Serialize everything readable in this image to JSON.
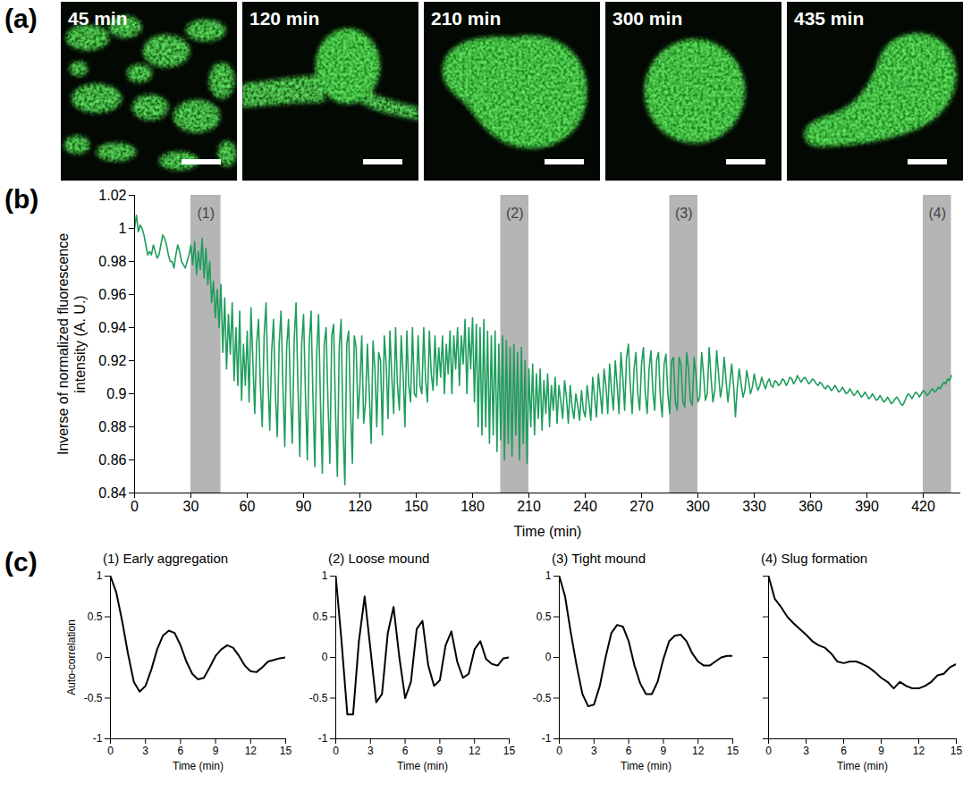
{
  "panel_letters": [
    "(a)",
    "(b)",
    "(c)"
  ],
  "images": [
    {
      "label": "45 min"
    },
    {
      "label": "120 min"
    },
    {
      "label": "210 min"
    },
    {
      "label": "300 min"
    },
    {
      "label": "435 min"
    }
  ],
  "chart_data": [
    {
      "type": "line",
      "xlabel": "Time (min)",
      "ylabel": "Inverse of normalized fluorescence intensity (A. U.)",
      "color": "#1e9e5c",
      "xlim": [
        0,
        440
      ],
      "xticks": [
        0,
        30,
        60,
        90,
        120,
        150,
        180,
        210,
        240,
        270,
        300,
        330,
        360,
        390,
        420
      ],
      "ylim": [
        0.84,
        1.02
      ],
      "yticks": [
        0.84,
        0.86,
        0.88,
        0.9,
        0.92,
        0.94,
        0.96,
        0.98,
        1,
        1.02
      ],
      "highlights": [
        {
          "label": "(1)",
          "start": 30,
          "end": 46
        },
        {
          "label": "(2)",
          "start": 195,
          "end": 210
        },
        {
          "label": "(3)",
          "start": 285,
          "end": 300
        },
        {
          "label": "(4)",
          "start": 420,
          "end": 435
        }
      ],
      "x": [
        0,
        1,
        2,
        3,
        4,
        5,
        6,
        7,
        8,
        9,
        10,
        11,
        12,
        13,
        14,
        15,
        16,
        17,
        18,
        19,
        20,
        21,
        22,
        23,
        24,
        25,
        26,
        27,
        28,
        29,
        30,
        31,
        32,
        33,
        34,
        35,
        36,
        37,
        38,
        39,
        40,
        41,
        42,
        43,
        44,
        45,
        46,
        47,
        48,
        49,
        50,
        51,
        52,
        53,
        54,
        55,
        56,
        57,
        58,
        59,
        60,
        61,
        62,
        63,
        64,
        65,
        66,
        67,
        68,
        69,
        70,
        71,
        72,
        73,
        74,
        75,
        76,
        77,
        78,
        79,
        80,
        81,
        82,
        83,
        84,
        85,
        86,
        87,
        88,
        89,
        90,
        91,
        92,
        93,
        94,
        95,
        96,
        97,
        98,
        99,
        100,
        101,
        102,
        103,
        104,
        105,
        106,
        107,
        108,
        109,
        110,
        111,
        112,
        113,
        114,
        115,
        116,
        117,
        118,
        119,
        120,
        121,
        122,
        123,
        124,
        125,
        126,
        127,
        128,
        129,
        130,
        131,
        132,
        133,
        134,
        135,
        136,
        137,
        138,
        139,
        140,
        141,
        142,
        143,
        144,
        145,
        146,
        147,
        148,
        149,
        150,
        151,
        152,
        153,
        154,
        155,
        156,
        157,
        158,
        159,
        160,
        161,
        162,
        163,
        164,
        165,
        166,
        167,
        168,
        169,
        170,
        171,
        172,
        173,
        174,
        175,
        176,
        177,
        178,
        179,
        180,
        181,
        182,
        183,
        184,
        185,
        186,
        187,
        188,
        189,
        190,
        191,
        192,
        193,
        194,
        195,
        196,
        197,
        198,
        199,
        200,
        201,
        202,
        203,
        204,
        205,
        206,
        207,
        208,
        209,
        210,
        211,
        212,
        213,
        214,
        215,
        216,
        217,
        218,
        219,
        220,
        221,
        222,
        223,
        224,
        225,
        226,
        227,
        228,
        229,
        230,
        231,
        232,
        233,
        234,
        235,
        236,
        237,
        238,
        239,
        240,
        241,
        242,
        243,
        244,
        245,
        246,
        247,
        248,
        249,
        250,
        251,
        252,
        253,
        254,
        255,
        256,
        257,
        258,
        259,
        260,
        261,
        262,
        263,
        264,
        265,
        266,
        267,
        268,
        269,
        270,
        271,
        272,
        273,
        274,
        275,
        276,
        277,
        278,
        279,
        280,
        281,
        282,
        283,
        284,
        285,
        286,
        287,
        288,
        289,
        290,
        291,
        292,
        293,
        294,
        295,
        296,
        297,
        298,
        299,
        300,
        301,
        302,
        303,
        304,
        305,
        306,
        307,
        308,
        309,
        310,
        311,
        312,
        313,
        314,
        315,
        316,
        317,
        318,
        319,
        320,
        321,
        322,
        323,
        324,
        325,
        326,
        327,
        328,
        329,
        330,
        331,
        332,
        333,
        334,
        335,
        336,
        337,
        338,
        339,
        340,
        341,
        342,
        343,
        344,
        345,
        346,
        347,
        348,
        349,
        350,
        351,
        352,
        353,
        354,
        355,
        356,
        357,
        358,
        359,
        360,
        361,
        362,
        363,
        364,
        365,
        366,
        367,
        368,
        369,
        370,
        371,
        372,
        373,
        374,
        375,
        376,
        377,
        378,
        379,
        380,
        381,
        382,
        383,
        384,
        385,
        386,
        387,
        388,
        389,
        390,
        391,
        392,
        393,
        394,
        395,
        396,
        397,
        398,
        399,
        400,
        401,
        402,
        403,
        404,
        405,
        406,
        407,
        408,
        409,
        410,
        411,
        412,
        413,
        414,
        415,
        416,
        417,
        418,
        419,
        420,
        421,
        422,
        423,
        424,
        425,
        426,
        427,
        428,
        429,
        430,
        431,
        432,
        433,
        434,
        435
      ],
      "values": [
        1.0,
        1.008,
        0.998,
        1.002,
        1.0,
        0.996,
        0.99,
        0.984,
        0.986,
        0.984,
        0.99,
        0.986,
        0.982,
        0.984,
        0.99,
        0.996,
        0.994,
        0.99,
        0.984,
        0.98,
        0.98,
        0.976,
        0.984,
        0.99,
        0.986,
        0.98,
        0.978,
        0.976,
        0.98,
        0.984,
        0.99,
        0.978,
        0.992,
        0.972,
        0.986,
        0.975,
        0.994,
        0.97,
        0.988,
        0.966,
        0.98,
        0.955,
        0.968,
        0.946,
        0.963,
        0.94,
        0.966,
        0.925,
        0.958,
        0.915,
        0.948,
        0.924,
        0.955,
        0.908,
        0.94,
        0.905,
        0.95,
        0.896,
        0.93,
        0.905,
        0.938,
        0.895,
        0.952,
        0.92,
        0.888,
        0.93,
        0.945,
        0.905,
        0.88,
        0.935,
        0.955,
        0.91,
        0.878,
        0.925,
        0.945,
        0.9,
        0.874,
        0.93,
        0.95,
        0.905,
        0.868,
        0.928,
        0.945,
        0.9,
        0.87,
        0.932,
        0.955,
        0.905,
        0.862,
        0.93,
        0.948,
        0.9,
        0.86,
        0.93,
        0.95,
        0.898,
        0.856,
        0.925,
        0.948,
        0.895,
        0.852,
        0.93,
        0.94,
        0.895,
        0.858,
        0.935,
        0.942,
        0.89,
        0.85,
        0.928,
        0.945,
        0.88,
        0.845,
        0.93,
        0.938,
        0.89,
        0.858,
        0.935,
        0.928,
        0.885,
        0.905,
        0.935,
        0.882,
        0.895,
        0.93,
        0.9,
        0.87,
        0.932,
        0.915,
        0.88,
        0.925,
        0.92,
        0.875,
        0.935,
        0.918,
        0.885,
        0.938,
        0.91,
        0.888,
        0.94,
        0.905,
        0.89,
        0.935,
        0.912,
        0.88,
        0.938,
        0.905,
        0.895,
        0.94,
        0.9,
        0.898,
        0.935,
        0.905,
        0.9,
        0.94,
        0.908,
        0.895,
        0.938,
        0.912,
        0.902,
        0.935,
        0.905,
        0.928,
        0.91,
        0.935,
        0.9,
        0.93,
        0.912,
        0.938,
        0.9,
        0.935,
        0.915,
        0.94,
        0.905,
        0.935,
        0.918,
        0.945,
        0.9,
        0.94,
        0.915,
        0.946,
        0.895,
        0.942,
        0.88,
        0.94,
        0.875,
        0.945,
        0.88,
        0.938,
        0.87,
        0.935,
        0.875,
        0.938,
        0.865,
        0.93,
        0.872,
        0.935,
        0.86,
        0.932,
        0.87,
        0.928,
        0.862,
        0.93,
        0.875,
        0.925,
        0.86,
        0.928,
        0.87,
        0.92,
        0.858,
        0.915,
        0.88,
        0.918,
        0.875,
        0.912,
        0.885,
        0.915,
        0.878,
        0.908,
        0.888,
        0.912,
        0.88,
        0.905,
        0.89,
        0.91,
        0.882,
        0.905,
        0.895,
        0.885,
        0.908,
        0.898,
        0.882,
        0.905,
        0.892,
        0.885,
        0.9,
        0.893,
        0.884,
        0.902,
        0.89,
        0.886,
        0.905,
        0.895,
        0.884,
        0.91,
        0.898,
        0.886,
        0.912,
        0.9,
        0.888,
        0.915,
        0.905,
        0.888,
        0.918,
        0.902,
        0.89,
        0.92,
        0.905,
        0.888,
        0.925,
        0.91,
        0.89,
        0.922,
        0.93,
        0.905,
        0.888,
        0.915,
        0.925,
        0.9,
        0.89,
        0.918,
        0.928,
        0.9,
        0.888,
        0.915,
        0.926,
        0.902,
        0.89,
        0.92,
        0.925,
        0.898,
        0.886,
        0.918,
        0.924,
        0.9,
        0.888,
        0.92,
        0.922,
        0.895,
        0.89,
        0.922,
        0.918,
        0.895,
        0.892,
        0.925,
        0.915,
        0.896,
        0.893,
        0.922,
        0.912,
        0.895,
        0.898,
        0.925,
        0.912,
        0.896,
        0.9,
        0.928,
        0.91,
        0.895,
        0.902,
        0.926,
        0.912,
        0.898,
        0.905,
        0.922,
        0.908,
        0.895,
        0.906,
        0.918,
        0.905,
        0.886,
        0.904,
        0.915,
        0.906,
        0.898,
        0.902,
        0.914,
        0.908,
        0.9,
        0.904,
        0.912,
        0.906,
        0.902,
        0.905,
        0.91,
        0.906,
        0.903,
        0.907,
        0.909,
        0.905,
        0.904,
        0.908,
        0.907,
        0.905,
        0.906,
        0.909,
        0.908,
        0.905,
        0.907,
        0.91,
        0.909,
        0.906,
        0.908,
        0.911,
        0.909,
        0.907,
        0.909,
        0.91,
        0.908,
        0.906,
        0.907,
        0.909,
        0.908,
        0.906,
        0.905,
        0.907,
        0.906,
        0.904,
        0.903,
        0.905,
        0.904,
        0.902,
        0.903,
        0.905,
        0.903,
        0.901,
        0.902,
        0.904,
        0.902,
        0.9,
        0.901,
        0.903,
        0.901,
        0.899,
        0.9,
        0.902,
        0.9,
        0.898,
        0.899,
        0.901,
        0.899,
        0.897,
        0.898,
        0.9,
        0.898,
        0.896,
        0.897,
        0.899,
        0.897,
        0.895,
        0.896,
        0.898,
        0.896,
        0.894,
        0.895,
        0.897,
        0.898,
        0.896,
        0.894,
        0.893,
        0.895,
        0.898,
        0.9,
        0.899,
        0.897,
        0.899,
        0.901,
        0.9,
        0.898,
        0.9,
        0.902,
        0.901,
        0.899,
        0.9,
        0.902,
        0.903,
        0.901,
        0.902,
        0.904,
        0.903,
        0.905,
        0.907,
        0.906,
        0.909,
        0.908,
        0.911
      ]
    },
    {
      "type": "line",
      "title": "(1) Early aggregation",
      "xlabel": "Time (min)",
      "ylabel": "Auto-correlation",
      "color": "#000000",
      "xlim": [
        0,
        15
      ],
      "xticks": [
        0,
        3,
        6,
        9,
        12,
        15
      ],
      "ylim": [
        -1,
        1
      ],
      "yticks": [
        -1,
        -0.5,
        0,
        0.5,
        1
      ],
      "x": [
        0,
        0.5,
        1,
        1.5,
        2,
        2.5,
        3,
        3.5,
        4,
        4.5,
        5,
        5.5,
        6,
        6.5,
        7,
        7.5,
        8,
        8.5,
        9,
        9.5,
        10,
        10.5,
        11,
        11.5,
        12,
        12.5,
        13,
        13.5,
        14,
        14.5,
        15
      ],
      "values": [
        1,
        0.8,
        0.45,
        0.05,
        -0.3,
        -0.42,
        -0.35,
        -0.15,
        0.1,
        0.27,
        0.33,
        0.3,
        0.15,
        -0.05,
        -0.2,
        -0.27,
        -0.25,
        -0.12,
        0.02,
        0.1,
        0.15,
        0.12,
        0.02,
        -0.1,
        -0.17,
        -0.18,
        -0.12,
        -0.05,
        -0.03,
        -0.01,
        0
      ]
    },
    {
      "type": "line",
      "title": "(2) Loose mound",
      "xlabel": "Time (min)",
      "color": "#000000",
      "xlim": [
        0,
        15
      ],
      "xticks": [
        0,
        3,
        6,
        9,
        12,
        15
      ],
      "ylim": [
        -1,
        1
      ],
      "yticks": [
        -1,
        -0.5,
        0,
        0.5,
        1
      ],
      "x": [
        0,
        0.5,
        1,
        1.5,
        2,
        2.5,
        3,
        3.5,
        4,
        4.5,
        5,
        5.5,
        6,
        6.5,
        7,
        7.5,
        8,
        8.5,
        9,
        9.5,
        10,
        10.5,
        11,
        11.5,
        12,
        12.5,
        13,
        13.5,
        14,
        14.5,
        15
      ],
      "values": [
        1,
        0.2,
        -0.7,
        -0.7,
        0.2,
        0.75,
        0.1,
        -0.55,
        -0.45,
        0.3,
        0.62,
        0,
        -0.5,
        -0.3,
        0.35,
        0.45,
        -0.1,
        -0.35,
        -0.28,
        0.15,
        0.32,
        -0.05,
        -0.25,
        -0.2,
        0.1,
        0.2,
        -0.02,
        -0.08,
        -0.1,
        -0.01,
        0
      ]
    },
    {
      "type": "line",
      "title": "(3) Tight mound",
      "xlabel": "Time (min)",
      "color": "#000000",
      "xlim": [
        0,
        15
      ],
      "xticks": [
        0,
        3,
        6,
        9,
        12,
        15
      ],
      "ylim": [
        -1,
        1
      ],
      "yticks": [
        -1,
        -0.5,
        0,
        0.5,
        1
      ],
      "x": [
        0,
        0.5,
        1,
        1.5,
        2,
        2.5,
        3,
        3.5,
        4,
        4.5,
        5,
        5.5,
        6,
        6.5,
        7,
        7.5,
        8,
        8.5,
        9,
        9.5,
        10,
        10.5,
        11,
        11.5,
        12,
        12.5,
        13,
        13.5,
        14,
        14.5,
        15
      ],
      "values": [
        1,
        0.75,
        0.3,
        -0.1,
        -0.45,
        -0.6,
        -0.58,
        -0.35,
        0,
        0.3,
        0.4,
        0.38,
        0.2,
        -0.1,
        -0.32,
        -0.45,
        -0.45,
        -0.3,
        -0.02,
        0.2,
        0.27,
        0.28,
        0.2,
        0.05,
        -0.05,
        -0.1,
        -0.1,
        -0.05,
        0,
        0.02,
        0.02
      ]
    },
    {
      "type": "line",
      "title": "(4) Slug formation",
      "xlabel": "Time (min)",
      "color": "#000000",
      "tick_labels": "x",
      "xlim": [
        0,
        15
      ],
      "xticks": [
        0,
        3,
        6,
        9,
        12,
        15
      ],
      "ylim": [
        -1,
        1
      ],
      "yticks": [
        -1,
        -0.5,
        0,
        0.5,
        1
      ],
      "x": [
        0,
        0.5,
        1,
        1.5,
        2,
        2.5,
        3,
        3.5,
        4,
        4.5,
        5,
        5.5,
        6,
        6.5,
        7,
        7.5,
        8,
        8.5,
        9,
        9.5,
        10,
        10.5,
        11,
        11.5,
        12,
        12.5,
        13,
        13.5,
        14,
        14.5,
        15
      ],
      "values": [
        1,
        0.72,
        0.62,
        0.5,
        0.42,
        0.35,
        0.28,
        0.2,
        0.15,
        0.12,
        0.05,
        -0.05,
        -0.07,
        -0.05,
        -0.05,
        -0.08,
        -0.12,
        -0.18,
        -0.25,
        -0.3,
        -0.38,
        -0.3,
        -0.35,
        -0.38,
        -0.38,
        -0.35,
        -0.3,
        -0.22,
        -0.2,
        -0.12,
        -0.08
      ]
    }
  ]
}
